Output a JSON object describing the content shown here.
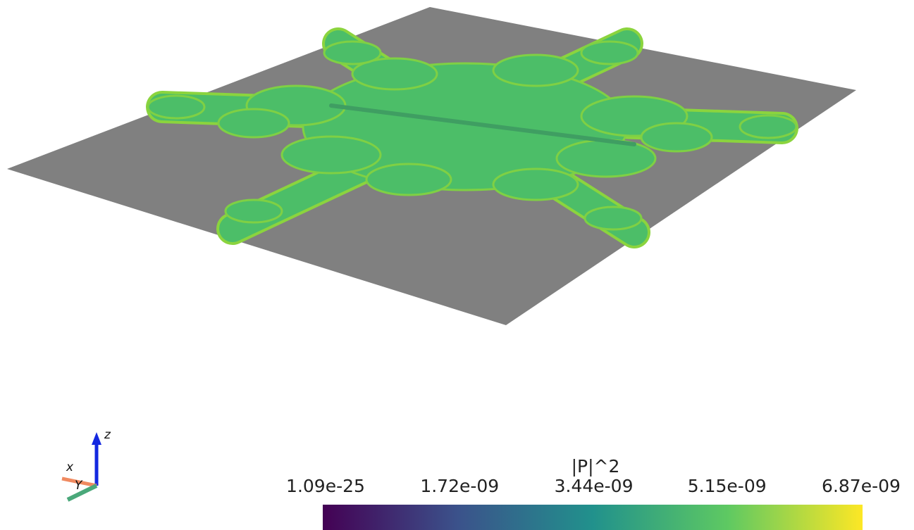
{
  "colorbar": {
    "title": "|P|^2",
    "range": [
      1.09e-25,
      6.87e-09
    ],
    "ticks": [
      {
        "value": 1.09e-25,
        "label": "1.09e-25"
      },
      {
        "value": 1.72e-09,
        "label": "1.72e-09"
      },
      {
        "value": 3.44e-09,
        "label": "3.44e-09"
      },
      {
        "value": 5.15e-09,
        "label": "5.15e-09"
      },
      {
        "value": 6.87e-09,
        "label": "6.87e-09"
      }
    ]
  },
  "orientation_axes": {
    "x": "x",
    "y": "Y",
    "z": "z"
  }
}
